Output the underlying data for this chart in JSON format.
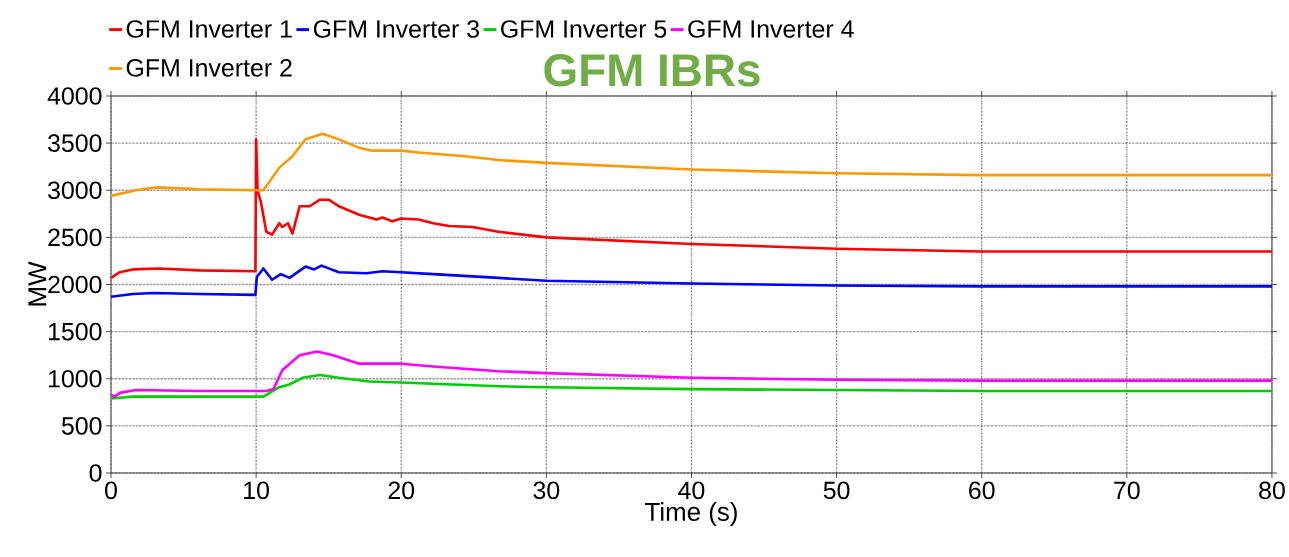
{
  "chart_data": {
    "type": "line",
    "title": "GFM IBRs",
    "xlabel": "Time (s)",
    "ylabel": "MW",
    "xlim": [
      0,
      80
    ],
    "xticks": [
      0,
      10,
      20,
      30,
      40,
      50,
      60,
      70,
      80
    ],
    "ylim": [
      0,
      4000
    ],
    "yticks": [
      0,
      500,
      1000,
      1500,
      2000,
      2500,
      3000,
      3500,
      4000
    ],
    "grid": true,
    "legend": "top left",
    "line_style": "solid",
    "series": [
      {
        "name": "GFM Inverter 1",
        "color": "#ff0000",
        "x": [
          0,
          0.6,
          1.5,
          3.3,
          6.1,
          9.95,
          10,
          10.1,
          10.35,
          10.7,
          11.1,
          11.6,
          11.8,
          12.2,
          12.5,
          13,
          13.7,
          14.4,
          15,
          15.7,
          17.1,
          18.3,
          18.7,
          19.4,
          20,
          21.2,
          22.2,
          23.3,
          24.9,
          26.7,
          30,
          40,
          50,
          60,
          70,
          80
        ],
        "values": [
          2070,
          2130,
          2160,
          2170,
          2150,
          2140,
          3540,
          3000,
          2860,
          2560,
          2530,
          2650,
          2610,
          2650,
          2540,
          2830,
          2830,
          2900,
          2900,
          2830,
          2740,
          2690,
          2710,
          2670,
          2700,
          2690,
          2650,
          2620,
          2610,
          2560,
          2500,
          2430,
          2380,
          2350,
          2350,
          2350
        ]
      },
      {
        "name": "GFM Inverter 3",
        "color": "#0000ff",
        "x": [
          0,
          1.5,
          2.9,
          6.1,
          9.95,
          10.05,
          10.5,
          11.1,
          11.7,
          12.3,
          13.4,
          14,
          14.5,
          15.7,
          17.6,
          18.7,
          20,
          22.2,
          26.7,
          30,
          40,
          50,
          60,
          80
        ],
        "values": [
          1870,
          1900,
          1910,
          1900,
          1890,
          2080,
          2170,
          2050,
          2110,
          2070,
          2190,
          2160,
          2200,
          2130,
          2120,
          2140,
          2130,
          2110,
          2070,
          2040,
          2010,
          1990,
          1980,
          1980
        ]
      },
      {
        "name": "GFM Inverter 5",
        "color": "#00cc00",
        "x": [
          0,
          1.5,
          6.1,
          10,
          10.5,
          11.6,
          12.3,
          13.2,
          14.4,
          15.7,
          17.8,
          20,
          26.7,
          30,
          40,
          50,
          60,
          80
        ],
        "values": [
          790,
          810,
          810,
          810,
          810,
          910,
          940,
          1010,
          1040,
          1010,
          970,
          960,
          920,
          910,
          890,
          880,
          870,
          870
        ]
      },
      {
        "name": "GFM Inverter 4",
        "color": "#ff00ff",
        "x": [
          0,
          0.25,
          0.6,
          1.7,
          6.1,
          10.7,
          11.2,
          11.8,
          13,
          14.2,
          15.3,
          17.1,
          20,
          22.2,
          26.7,
          30,
          40,
          50,
          60,
          80
        ],
        "values": [
          830,
          810,
          850,
          880,
          870,
          870,
          890,
          1090,
          1250,
          1290,
          1250,
          1160,
          1160,
          1130,
          1080,
          1060,
          1010,
          990,
          980,
          980
        ]
      },
      {
        "name": "GFM Inverter 2",
        "color": "#ff9900",
        "x": [
          0,
          1.7,
          3.1,
          6.1,
          10,
          10.5,
          11.6,
          12.5,
          13.4,
          14.6,
          15.7,
          17.1,
          18,
          20,
          21.2,
          24.4,
          26.7,
          30,
          40,
          50,
          60,
          70,
          80
        ],
        "values": [
          2940,
          3000,
          3030,
          3010,
          3000,
          3000,
          3240,
          3360,
          3540,
          3600,
          3540,
          3450,
          3420,
          3420,
          3400,
          3360,
          3320,
          3290,
          3220,
          3180,
          3160,
          3160,
          3160
        ]
      }
    ]
  }
}
